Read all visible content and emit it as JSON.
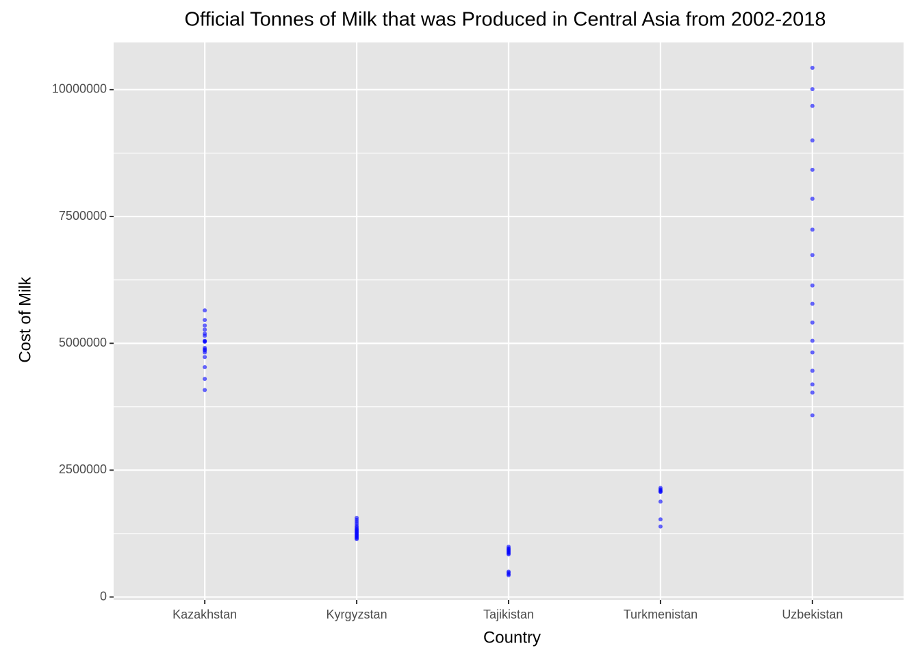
{
  "chart_data": {
    "type": "strip",
    "title": "Official Tonnes of Milk that was Produced in Central Asia from 2002-2018",
    "x_label": "Country",
    "y_label": "Cost of Milk",
    "categories": [
      "Kazakhstan",
      "Kyrgyzstan",
      "Tajikistan",
      "Turkmenistan",
      "Uzbekistan"
    ],
    "values": [
      [
        5650000,
        5460000,
        5350000,
        5270000,
        5190000,
        5150000,
        5050000,
        5040000,
        5030000,
        4910000,
        4880000,
        4860000,
        4820000,
        4730000,
        4530000,
        4300000,
        4080000
      ],
      [
        1140000,
        1160000,
        1180000,
        1200000,
        1220000,
        1240000,
        1260000,
        1280000,
        1300000,
        1320000,
        1340000,
        1370000,
        1400000,
        1440000,
        1480000,
        1520000,
        1560000
      ],
      [
        430000,
        450000,
        480000,
        500000,
        840000,
        860000,
        880000,
        900000,
        920000,
        940000,
        960000,
        990000
      ],
      [
        1390000,
        1530000,
        1880000,
        2070000,
        2080000,
        2100000,
        2120000,
        2150000
      ],
      [
        10430000,
        10010000,
        9680000,
        9000000,
        8420000,
        7850000,
        7240000,
        6740000,
        6140000,
        5780000,
        5410000,
        5050000,
        4820000,
        4460000,
        4190000,
        4030000,
        3580000
      ]
    ],
    "color": "#0000ff",
    "ylim": [
      -60000,
      10930000
    ],
    "yticks": [
      0,
      2500000,
      5000000,
      7500000,
      10000000
    ],
    "yminor": [
      1250000,
      3750000,
      6250000,
      8750000
    ],
    "grid": true
  }
}
